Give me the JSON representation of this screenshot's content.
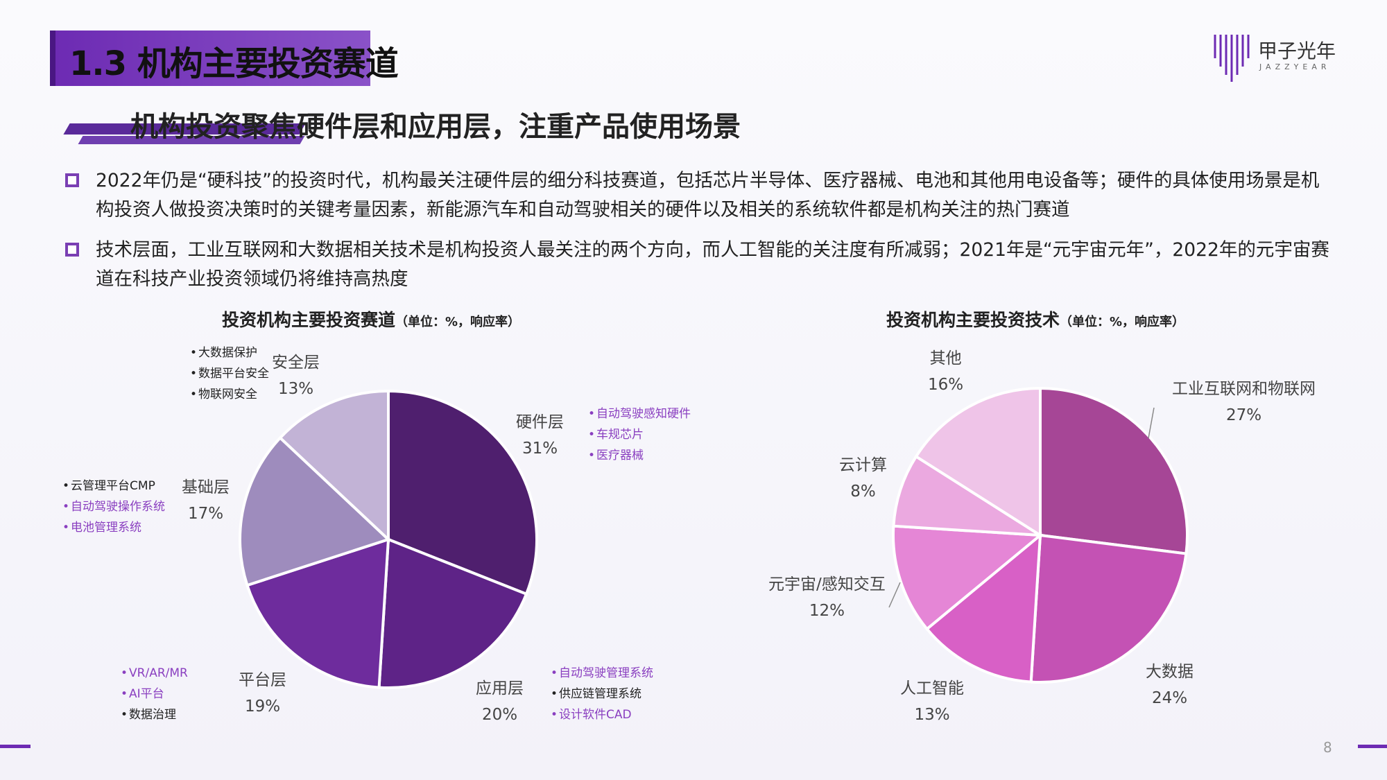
{
  "header": {
    "title": "1.3 机构主要投资赛道",
    "logo_text": "甲子光年",
    "logo_sub": "JAZZYEAR"
  },
  "subtitle": "机构投资聚焦硬件层和应用层，注重产品使用场景",
  "bullets": [
    "2022年仍是“硬科技”的投资时代，机构最关注硬件层的细分科技赛道，包括芯片半导体、医疗器械、电池和其他用电设备等；硬件的具体使用场景是机构投资人做投资决策时的关键考量因素，新能源汽车和自动驾驶相关的硬件以及相关的系统软件都是机构关注的热门赛道",
    "技术层面，工业互联网和大数据相关技术是机构投资人最关注的两个方向，而人工智能的关注度有所减弱；2021年是“元宇宙元年”，2022年的元宇宙赛道在科技产业投资领域仍将维持高热度"
  ],
  "page_number": "8",
  "colors": {
    "accent": "#6d2bb3",
    "purple_text": "#7a3fb3"
  },
  "chart_data": [
    {
      "type": "pie",
      "title": "投资机构主要投资赛道",
      "unit": "（单位：%，响应率）",
      "slices": [
        {
          "name": "硬件层",
          "value": 31,
          "label": "31%",
          "color": "#4f1f6e",
          "subitems": [
            {
              "text": "自动驾驶感知硬件",
              "color": "#8a3fc0"
            },
            {
              "text": "车规芯片",
              "color": "#8a3fc0"
            },
            {
              "text": "医疗器械",
              "color": "#8a3fc0"
            }
          ]
        },
        {
          "name": "应用层",
          "value": 20,
          "label": "20%",
          "color": "#5e2387",
          "subitems": [
            {
              "text": "自动驾驶管理系统",
              "color": "#8a3fc0"
            },
            {
              "text": "供应链管理系统",
              "color": "#222222"
            },
            {
              "text": "设计软件CAD",
              "color": "#8a3fc0"
            }
          ]
        },
        {
          "name": "平台层",
          "value": 19,
          "label": "19%",
          "color": "#6e2c9d",
          "subitems": [
            {
              "text": "VR/AR/MR",
              "color": "#8a3fc0"
            },
            {
              "text": "AI平台",
              "color": "#8a3fc0"
            },
            {
              "text": "数据治理",
              "color": "#222222"
            }
          ]
        },
        {
          "name": "基础层",
          "value": 17,
          "label": "17%",
          "color": "#9e8cbd",
          "subitems": [
            {
              "text": "云管理平台CMP",
              "color": "#222222"
            },
            {
              "text": "自动驾驶操作系统",
              "color": "#8a3fc0"
            },
            {
              "text": "电池管理系统",
              "color": "#8a3fc0"
            }
          ]
        },
        {
          "name": "安全层",
          "value": 13,
          "label": "13%",
          "color": "#c2b3d6",
          "subitems": [
            {
              "text": "大数据保护",
              "color": "#222222"
            },
            {
              "text": "数据平台安全",
              "color": "#222222"
            },
            {
              "text": "物联网安全",
              "color": "#222222"
            }
          ]
        }
      ]
    },
    {
      "type": "pie",
      "title": "投资机构主要投资技术",
      "unit": "（单位：%，响应率）",
      "slices": [
        {
          "name": "工业互联网和物联网",
          "value": 27,
          "label": "27%",
          "color": "#a64696"
        },
        {
          "name": "大数据",
          "value": 24,
          "label": "24%",
          "color": "#c452b4"
        },
        {
          "name": "人工智能",
          "value": 13,
          "label": "13%",
          "color": "#d860c6"
        },
        {
          "name": "元宇宙/感知交互",
          "value": 12,
          "label": "12%",
          "color": "#e586d6"
        },
        {
          "name": "云计算",
          "value": 8,
          "label": "8%",
          "color": "#eba9e0"
        },
        {
          "name": "其他",
          "value": 16,
          "label": "16%",
          "color": "#efc4e8"
        }
      ]
    }
  ]
}
